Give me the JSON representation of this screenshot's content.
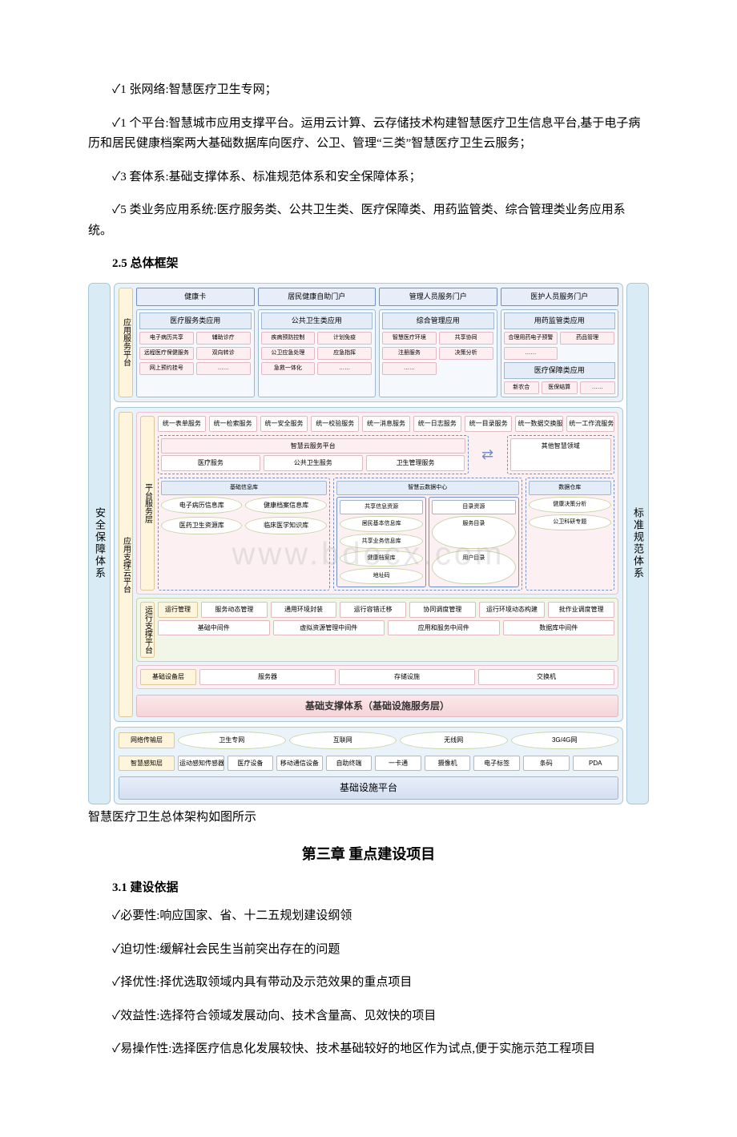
{
  "p1": "✓1 张网络:智慧医疗卫生专网；",
  "p2": "✓1 个平台:智慧城市应用支撑平台。运用云计算、云存储技术构建智慧医疗卫生信息平台,基于电子病历和居民健康档案两大基础数据库向医疗、公卫、管理“三类”智慧医疗卫生云服务；",
  "p3": "✓3 套体系:基础支撑体系、标准规范体系和安全保障体系；",
  "p4": "✓5 类业务应用系统:医疗服务类、公共卫生类、医疗保障类、用药监管类、综合管理类业务应用系统。",
  "h25": "2.5 总体框架",
  "caption": "智慧医疗卫生总体架构如图所示",
  "ch3": "第三章 重点建设项目",
  "h31": "3.1 建设依据",
  "b1": "✓必要性:响应国家、省、十二五规划建设纲领",
  "b2": "✓迫切性:缓解社会民生当前突出存在的问题",
  "b3": "✓择优性:择优选取领域内具有带动及示范效果的重点项目",
  "b4": "✓效益性:选择符合领域发展动向、技术含量高、见效快的项目",
  "b5": "✓易操作性:选择医疗信息化发展较快、技术基础较好的地区作为试点,便于实施示范工程项目",
  "diagram": {
    "left_side": "安全保障体系",
    "right_side": "标准规范体系",
    "watermark": "www.bdocx.com",
    "app_service": {
      "label": "应用服务平台",
      "portals": [
        "健康卡",
        "居民健康自助门户",
        "管理人员服务门户",
        "医护人员服务门户"
      ],
      "groups": [
        {
          "head": "医疗服务类应用",
          "tags": [
            "电子病历共享",
            "辅助诊疗",
            "远程医疗保健服务",
            "双向转诊",
            "网上预约挂号",
            "……"
          ]
        },
        {
          "head": "公共卫生类应用",
          "tags": [
            "疾病预防控制",
            "计划免疫",
            "公卫应急处理",
            "应急指挥",
            "急救一体化",
            "……"
          ]
        },
        {
          "head": "综合管理应用",
          "tags": [
            "智慧医疗环境",
            "共享协同",
            "注册服务",
            "决策分析",
            "……"
          ]
        },
        {
          "head": "用药监管类应用",
          "tags": [
            "合理用药电子预警",
            "药品管理",
            "……"
          ],
          "sub": {
            "head": "医疗保障类应用",
            "tags": [
              "新农合",
              "医保结算",
              "……"
            ]
          }
        }
      ]
    },
    "mid_block": {
      "outer_label": "应用支撑云平台",
      "platform_label": "平台服务层",
      "unified": [
        "统一表单服务",
        "统一检索服务",
        "统一安全服务",
        "统一校验服务",
        "统一消息服务",
        "统一日志服务",
        "统一目录服务",
        "统一数据交换服务",
        "统一工作流服务"
      ],
      "cloud_platform": {
        "title": "智慧云服务平台",
        "items": [
          "医疗服务",
          "公共卫生服务",
          "卫生管理服务"
        ]
      },
      "other": "其他智慧领域",
      "base_info": {
        "title": "基础信息库",
        "items": [
          "电子病历信息库",
          "健康档案信息库",
          "医药卫生资源库",
          "临床医学知识库"
        ]
      },
      "data_center": {
        "title": "智慧云数据中心",
        "cols": [
          {
            "h": "共享信息资源",
            "t": [
              "居民基本信息库",
              "共享业务信息库",
              "健康档案库",
              "地址码"
            ]
          },
          {
            "h": "目录资源",
            "t": [
              "服务目录",
              "用户目录"
            ]
          }
        ]
      },
      "data_wh": {
        "title": "数据仓库",
        "items": [
          "健康决策分析",
          "公卫科研专题"
        ]
      },
      "runtime_label": "运行支撑平台",
      "runtime_top": {
        "title": "运行管理",
        "items": [
          "服务动态管理",
          "通用环境封装",
          "运行容错迁移",
          "协同调度管理",
          "运行环境动态构建",
          "批作业调度管理"
        ]
      },
      "runtime_bot": [
        "基础中间件",
        "虚拟资源管理中间件",
        "应用和服务中间件",
        "数据库中间件"
      ],
      "infra_label": "基础设备层",
      "infra": [
        "服务器",
        "存储设施",
        "交换机"
      ],
      "infra_title": "基础支撑体系（基础设施服务层）"
    },
    "bottom": {
      "net_label": "网络传输层",
      "net": [
        "卫生专网",
        "互联网",
        "无线网",
        "3G/4G网"
      ],
      "sense_label": "智慧感知层",
      "sense": [
        "运动感知传感器",
        "医疗设备",
        "移动通信设备",
        "自助终端",
        "一卡通",
        "摄像机",
        "电子标签",
        "条码",
        "PDA"
      ],
      "bottom_title": "基础设施平台"
    }
  }
}
